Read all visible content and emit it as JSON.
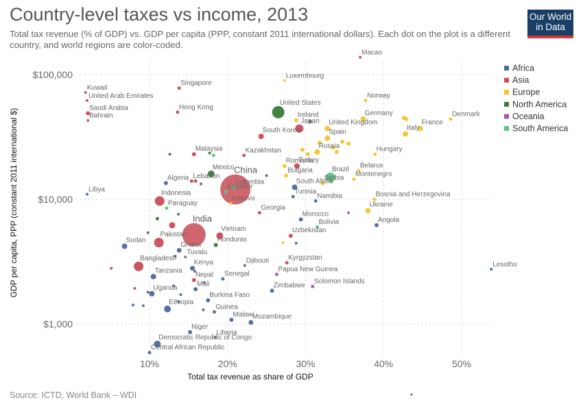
{
  "title": "Country-level taxes vs income, 2013",
  "subtitle": "Total tax revenue (% of GDP) vs. GDP per capita (PPP, constant 2011 international dollars). Each dot on the plot is a different country, and world regions are color-coded.",
  "logo": {
    "line1": "Our World",
    "line2": "in Data",
    "bg": "#1a3f66",
    "accent": "#d6363a"
  },
  "source": "Source: ICTD, World Bank – WDI",
  "chart_data": {
    "type": "scatter",
    "xlabel": "Total tax revenue as share of GDP",
    "ylabel": "GDP per capita, PPP (constant 2011 international $)",
    "x_ticks": [
      {
        "v": 10,
        "label": "10%"
      },
      {
        "v": 20,
        "label": "20%"
      },
      {
        "v": 30,
        "label": "30%"
      },
      {
        "v": 40,
        "label": "40%"
      },
      {
        "v": 50,
        "label": "50%"
      }
    ],
    "y_ticks": [
      {
        "v": 1000,
        "label": "$1,000"
      },
      {
        "v": 10000,
        "label": "$10,000"
      },
      {
        "v": 100000,
        "label": "$100,000"
      }
    ],
    "xlim": [
      6,
      54
    ],
    "ylim": [
      550,
      150000
    ],
    "y_scale": "log",
    "grid": true,
    "legend_position": "right",
    "regions": [
      {
        "name": "Africa",
        "color": "#4c6a9c"
      },
      {
        "name": "Asia",
        "color": "#c94c55"
      },
      {
        "name": "Europe",
        "color": "#f5c42c"
      },
      {
        "name": "North America",
        "color": "#3a7a3a"
      },
      {
        "name": "Oceania",
        "color": "#a156ad"
      },
      {
        "name": "South America",
        "color": "#5cc285"
      }
    ],
    "points": [
      {
        "label": "Macao",
        "region": "Asia",
        "x": 37,
        "y": 138000,
        "r": 2
      },
      {
        "label": "Luxembourg",
        "region": "Europe",
        "x": 27.3,
        "y": 90000,
        "r": 2
      },
      {
        "label": "Kuwait",
        "region": "Asia",
        "x": 1.8,
        "y": 72000,
        "r": 2
      },
      {
        "label": "Singapore",
        "region": "Asia",
        "x": 13.8,
        "y": 78000,
        "r": 2.5
      },
      {
        "label": "United Arab Emirates",
        "region": "Asia",
        "x": 2,
        "y": 62000,
        "r": 2
      },
      {
        "label": "Norway",
        "region": "Europe",
        "x": 37.7,
        "y": 62000,
        "r": 2.5
      },
      {
        "label": "Saudi Arabia",
        "region": "Asia",
        "x": 2.1,
        "y": 49000,
        "r": 3
      },
      {
        "label": "Hong Kong",
        "region": "Asia",
        "x": 13.6,
        "y": 50000,
        "r": 2.5
      },
      {
        "label": "Bahrain",
        "region": "Asia",
        "x": 2.1,
        "y": 43000,
        "r": 2
      },
      {
        "label": "United States",
        "region": "North America",
        "x": 26.5,
        "y": 50000,
        "r": 9
      },
      {
        "label": "Ireland",
        "region": "Europe",
        "x": 28.8,
        "y": 43000,
        "r": 3
      },
      {
        "label": "Japan",
        "region": "Asia",
        "x": 29.2,
        "y": 37000,
        "r": 6
      },
      {
        "label": "Germany",
        "region": "Europe",
        "x": 37.4,
        "y": 44000,
        "r": 4
      },
      {
        "label": "Denmark",
        "region": "Europe",
        "x": 48.6,
        "y": 44000,
        "r": 2.5
      },
      {
        "label": "France",
        "region": "Europe",
        "x": 44.7,
        "y": 37000,
        "r": 4
      },
      {
        "label": "Italy",
        "region": "Europe",
        "x": 42.8,
        "y": 33500,
        "r": 4
      },
      {
        "label": "United Kingdom",
        "region": "Europe",
        "x": 32.8,
        "y": 37000,
        "r": 4
      },
      {
        "label": "South Korea",
        "region": "Asia",
        "x": 24.3,
        "y": 32000,
        "r": 4
      },
      {
        "label": "Spain",
        "region": "Europe",
        "x": 32.8,
        "y": 31000,
        "r": 4
      },
      {
        "label": "Russia",
        "region": "Europe",
        "x": 31.5,
        "y": 24000,
        "r": 4
      },
      {
        "label": "Kazakhstan",
        "region": "Asia",
        "x": 22.1,
        "y": 22500,
        "r": 2.5
      },
      {
        "label": "Malaysia",
        "region": "Asia",
        "x": 15.7,
        "y": 23000,
        "r": 3
      },
      {
        "label": "Turkey",
        "region": "Asia",
        "x": 28.9,
        "y": 18500,
        "r": 4
      },
      {
        "label": "Hungary",
        "region": "Europe",
        "x": 38.9,
        "y": 23000,
        "r": 2.5
      },
      {
        "label": "Romania",
        "region": "Europe",
        "x": 27.3,
        "y": 18500,
        "r": 3
      },
      {
        "label": "Belarus",
        "region": "Europe",
        "x": 36.8,
        "y": 17000,
        "r": 2.5
      },
      {
        "label": "Mexico",
        "region": "North America",
        "x": 17.9,
        "y": 16000,
        "r": 5
      },
      {
        "label": "Bulgaria",
        "region": "Europe",
        "x": 27.5,
        "y": 15500,
        "r": 3
      },
      {
        "label": "Brazil",
        "region": "South America",
        "x": 33.2,
        "y": 15000,
        "r": 7
      },
      {
        "label": "Lebanon",
        "region": "Asia",
        "x": 15.4,
        "y": 14000,
        "r": 2.5
      },
      {
        "label": "Montenegro",
        "region": "Europe",
        "x": 36.2,
        "y": 14500,
        "r": 2.5
      },
      {
        "label": "China",
        "region": "Asia",
        "x": 21.0,
        "y": 12000,
        "r": 22
      },
      {
        "label": "Colombia",
        "region": "South America",
        "x": 20.8,
        "y": 12500,
        "r": 3
      },
      {
        "label": "Algeria",
        "region": "Africa",
        "x": 12.1,
        "y": 13500,
        "r": 3
      },
      {
        "label": "Serbia",
        "region": "Europe",
        "x": 32.2,
        "y": 13500,
        "r": 3
      },
      {
        "label": "South Africa",
        "region": "Africa",
        "x": 28.6,
        "y": 12500,
        "r": 4
      },
      {
        "label": "Ecuador",
        "region": "South America",
        "x": 19.8,
        "y": 11500,
        "r": 3
      },
      {
        "label": "Indonesia",
        "region": "Asia",
        "x": 11.3,
        "y": 9700,
        "r": 7
      },
      {
        "label": "Libya",
        "region": "Africa",
        "x": 2,
        "y": 11000,
        "r": 2
      },
      {
        "label": "Tunisia",
        "region": "Africa",
        "x": 28.4,
        "y": 10500,
        "r": 2.5
      },
      {
        "label": "Namibia",
        "region": "Africa",
        "x": 31.3,
        "y": 9700,
        "r": 2.5
      },
      {
        "label": "Bosnia and Herzegovina",
        "region": "Europe",
        "x": 38.8,
        "y": 10000,
        "r": 2.5
      },
      {
        "label": "Kosovo",
        "region": "Europe",
        "x": 20.4,
        "y": 9300,
        "r": 2
      },
      {
        "label": "Georgia",
        "region": "Asia",
        "x": 24.1,
        "y": 7800,
        "r": 2.5
      },
      {
        "label": "Paraguay",
        "region": "South America",
        "x": 12.2,
        "y": 8500,
        "r": 2.5
      },
      {
        "label": "Ukraine",
        "region": "Europe",
        "x": 38.0,
        "y": 8100,
        "r": 4
      },
      {
        "label": "Morocco",
        "region": "Africa",
        "x": 29.4,
        "y": 6900,
        "r": 3
      },
      {
        "label": "India",
        "region": "Asia",
        "x": 15.7,
        "y": 5200,
        "r": 17
      },
      {
        "label": "Vietnam",
        "region": "Asia",
        "x": 19.0,
        "y": 5100,
        "r": 5
      },
      {
        "label": "Bolivia",
        "region": "South America",
        "x": 31.5,
        "y": 6000,
        "r": 2.5
      },
      {
        "label": "Angola",
        "region": "Africa",
        "x": 39.1,
        "y": 6200,
        "r": 3
      },
      {
        "label": "Uzbekistan",
        "region": "Asia",
        "x": 28.1,
        "y": 5100,
        "r": 3
      },
      {
        "label": "Pakistan",
        "region": "Asia",
        "x": 11.2,
        "y": 4500,
        "r": 7
      },
      {
        "label": "Sudan",
        "region": "Africa",
        "x": 6.8,
        "y": 4200,
        "r": 4
      },
      {
        "label": "Honduras",
        "region": "North America",
        "x": 18.5,
        "y": 4300,
        "r": 3
      },
      {
        "label": "Ghana",
        "region": "Africa",
        "x": 13.8,
        "y": 3900,
        "r": 3.5
      },
      {
        "label": "Tuvalu",
        "region": "Oceania",
        "x": 14.6,
        "y": 3450,
        "r": 2
      },
      {
        "label": "Bangladesh",
        "region": "Asia",
        "x": 8.6,
        "y": 2900,
        "r": 7
      },
      {
        "label": "Kyrgyzstan",
        "region": "Asia",
        "x": 27.6,
        "y": 3100,
        "r": 2.5
      },
      {
        "label": "Djibouti",
        "region": "Africa",
        "x": 22.2,
        "y": 2950,
        "r": 2
      },
      {
        "label": "Kenya",
        "region": "Africa",
        "x": 15.5,
        "y": 2800,
        "r": 3.5
      },
      {
        "label": "Lesotho",
        "region": "Africa",
        "x": 53.8,
        "y": 2750,
        "r": 2
      },
      {
        "label": "Papua New Guinea",
        "region": "Oceania",
        "x": 26.3,
        "y": 2500,
        "r": 2.5
      },
      {
        "label": "Tanzania",
        "region": "Africa",
        "x": 10.5,
        "y": 2400,
        "r": 4
      },
      {
        "label": "Nepal",
        "region": "Asia",
        "x": 15.7,
        "y": 2250,
        "r": 3
      },
      {
        "label": "Senegal",
        "region": "Africa",
        "x": 19.4,
        "y": 2300,
        "r": 2.5
      },
      {
        "label": "Solomon Islands",
        "region": "Oceania",
        "x": 30.9,
        "y": 2000,
        "r": 2.5
      },
      {
        "label": "Zimbabwe",
        "region": "Africa",
        "x": 25.7,
        "y": 1850,
        "r": 3
      },
      {
        "label": "Mali",
        "region": "Africa",
        "x": 15.9,
        "y": 1900,
        "r": 3
      },
      {
        "label": "Uganda",
        "region": "Africa",
        "x": 10.3,
        "y": 1750,
        "r": 4
      },
      {
        "label": "Burkina Faso",
        "region": "Africa",
        "x": 17.5,
        "y": 1550,
        "r": 3
      },
      {
        "label": "Ethiopia",
        "region": "Africa",
        "x": 12.3,
        "y": 1320,
        "r": 5
      },
      {
        "label": "Guinea",
        "region": "Africa",
        "x": 18.3,
        "y": 1250,
        "r": 2.5
      },
      {
        "label": "Malawi",
        "region": "Africa",
        "x": 20.5,
        "y": 1080,
        "r": 3
      },
      {
        "label": "Mozambique",
        "region": "Africa",
        "x": 23.0,
        "y": 1030,
        "r": 3.5
      },
      {
        "label": "Niger",
        "region": "Africa",
        "x": 15.2,
        "y": 860,
        "r": 3
      },
      {
        "label": "Liberia",
        "region": "Africa",
        "x": 18.4,
        "y": 780,
        "r": 2
      },
      {
        "label": "Democratic Republic of Congo",
        "region": "Africa",
        "x": 11.0,
        "y": 690,
        "r": 5
      },
      {
        "label": "Central African Republic",
        "region": "Africa",
        "x": 10.0,
        "y": 590,
        "r": 2.5
      },
      {
        "label": "",
        "region": "Europe",
        "x": 42.6,
        "y": 45000,
        "r": 3
      },
      {
        "label": "",
        "region": "Europe",
        "x": 42.9,
        "y": 44000,
        "r": 3
      },
      {
        "label": "",
        "region": "Europe",
        "x": 34.7,
        "y": 29000,
        "r": 3
      },
      {
        "label": "",
        "region": "Europe",
        "x": 35.5,
        "y": 28000,
        "r": 3
      },
      {
        "label": "",
        "region": "Europe",
        "x": 33.5,
        "y": 26000,
        "r": 3
      },
      {
        "label": "",
        "region": "Europe",
        "x": 34.0,
        "y": 24000,
        "r": 3
      },
      {
        "label": "",
        "region": "Europe",
        "x": 31.8,
        "y": 28500,
        "r": 3
      },
      {
        "label": "",
        "region": "Europe",
        "x": 30.3,
        "y": 23000,
        "r": 3
      },
      {
        "label": "",
        "region": "Europe",
        "x": 29.6,
        "y": 25000,
        "r": 3
      },
      {
        "label": "",
        "region": "North America",
        "x": 30.6,
        "y": 42000,
        "r": 2.5
      },
      {
        "label": "",
        "region": "North America",
        "x": 12.6,
        "y": 23000,
        "r": 2
      },
      {
        "label": "",
        "region": "North America",
        "x": 17.7,
        "y": 23500,
        "r": 2
      },
      {
        "label": "",
        "region": "South America",
        "x": 18.2,
        "y": 22500,
        "r": 2.5
      },
      {
        "label": "",
        "region": "Asia",
        "x": 15.9,
        "y": 14000,
        "r": 2.5
      },
      {
        "label": "",
        "region": "Africa",
        "x": 25.0,
        "y": 15500,
        "r": 2
      },
      {
        "label": "",
        "region": "Africa",
        "x": 16.6,
        "y": 13300,
        "r": 2
      },
      {
        "label": "",
        "region": "Asia",
        "x": 12.9,
        "y": 6200,
        "r": 4.5
      },
      {
        "label": "",
        "region": "North America",
        "x": 11.0,
        "y": 7000,
        "r": 2.5
      },
      {
        "label": "",
        "region": "Africa",
        "x": 13.7,
        "y": 7600,
        "r": 2
      },
      {
        "label": "",
        "region": "Africa",
        "x": 28.8,
        "y": 4450,
        "r": 2
      },
      {
        "label": "",
        "region": "Europe",
        "x": 27.1,
        "y": 4500,
        "r": 2
      },
      {
        "label": "",
        "region": "Oceania",
        "x": 35.5,
        "y": 7800,
        "r": 2
      },
      {
        "label": "",
        "region": "Africa",
        "x": 9.8,
        "y": 5400,
        "r": 2
      },
      {
        "label": "",
        "region": "Africa",
        "x": 13.3,
        "y": 3500,
        "r": 2
      },
      {
        "label": "",
        "region": "Asia",
        "x": 5.1,
        "y": 2800,
        "r": 2
      },
      {
        "label": "",
        "region": "Africa",
        "x": 9.2,
        "y": 1400,
        "r": 2
      },
      {
        "label": "",
        "region": "Africa",
        "x": 9.8,
        "y": 1800,
        "r": 2
      },
      {
        "label": "",
        "region": "Africa",
        "x": 7.9,
        "y": 1420,
        "r": 2
      },
      {
        "label": "",
        "region": "Asia",
        "x": 8.1,
        "y": 1930,
        "r": 2
      },
      {
        "label": "",
        "region": "Africa",
        "x": 14.0,
        "y": 1720,
        "r": 2
      },
      {
        "label": "",
        "region": "Africa",
        "x": 13.7,
        "y": 1510,
        "r": 2
      },
      {
        "label": "",
        "region": "Africa",
        "x": 15.8,
        "y": 2650,
        "r": 2
      },
      {
        "label": "",
        "region": "Africa",
        "x": 17.0,
        "y": 2150,
        "r": 2
      },
      {
        "label": "",
        "region": "Africa",
        "x": 16.9,
        "y": 1300,
        "r": 2
      },
      {
        "label": "",
        "region": "Africa",
        "x": 13.1,
        "y": 2020,
        "r": 2
      }
    ]
  }
}
